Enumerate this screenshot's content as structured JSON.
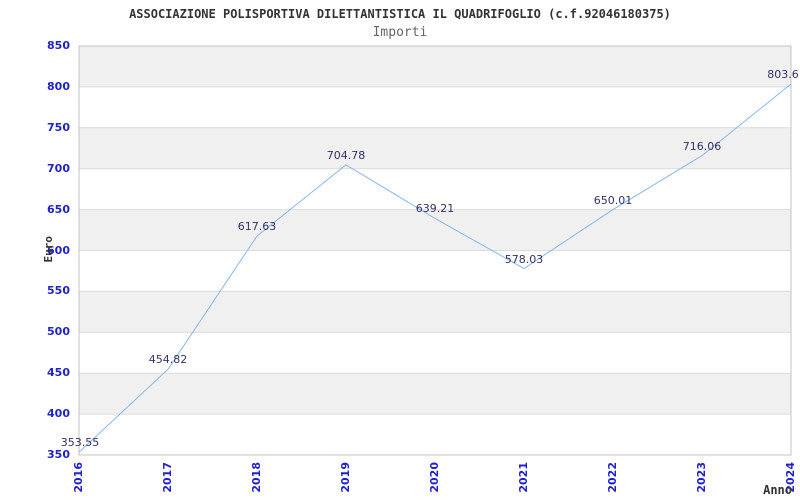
{
  "chart_data": {
    "type": "line",
    "title": "ASSOCIAZIONE POLISPORTIVA DILETTANTISTICA IL QUADRIFOGLIO (c.f.92046180375)",
    "subtitle": "Importi",
    "xlabel": "Anno",
    "ylabel": "Euro",
    "categories": [
      "2016",
      "2017",
      "2018",
      "2019",
      "2020",
      "2021",
      "2022",
      "2023",
      "2024"
    ],
    "values": [
      353.55,
      454.82,
      617.63,
      704.78,
      639.21,
      578.03,
      650.01,
      716.06,
      803.6
    ],
    "data_labels": [
      "353.55",
      "454.82",
      "617.63",
      "704.78",
      "639.21",
      "578.03",
      "650.01",
      "716.06",
      "803.6"
    ],
    "ylim": [
      350,
      850
    ],
    "ytick_step": 50,
    "yticks": [
      350,
      400,
      450,
      500,
      550,
      600,
      650,
      700,
      750,
      800,
      850
    ],
    "grid": "horizontal-alternating-bands",
    "legend": "none",
    "colors": {
      "line": "#8cb8e8",
      "data_label": "#333366",
      "tick_label": "#2222cc",
      "band_gray": "#f0f0f0",
      "grid_line": "#dcdcdc",
      "plot_border": "#c3c3c3",
      "title": "#333333",
      "subtitle": "#666666",
      "axis_title": "#333333"
    }
  }
}
